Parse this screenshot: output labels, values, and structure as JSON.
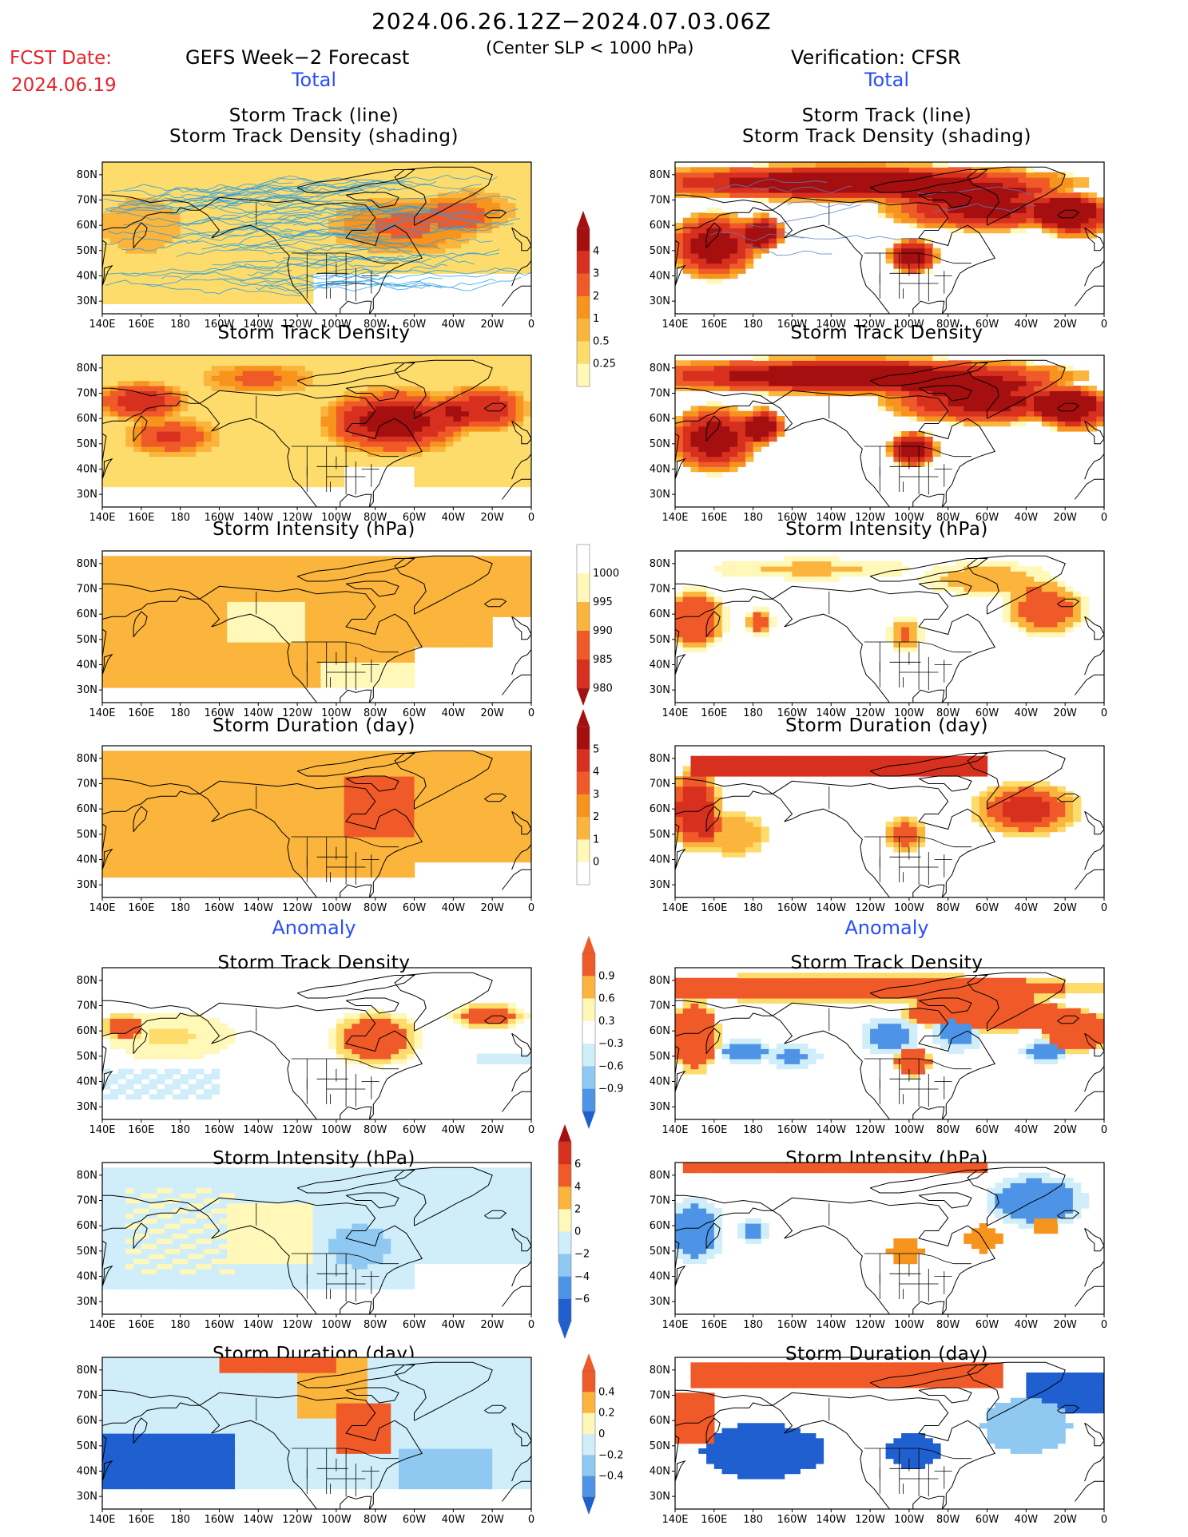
{
  "header": {
    "period": "2024.06.26.12Z−2024.07.03.06Z",
    "criterion": "(Center SLP < 1000 hPa)",
    "fcst_label": "FCST Date:",
    "fcst_value": "2024.06.19",
    "model": "GEFS Week−2 Forecast",
    "verification": "Verification: CFSR"
  },
  "sections": {
    "total_left": "Total",
    "total_right": "Total",
    "anomaly_left": "Anomaly",
    "anomaly_right": "Anomaly"
  },
  "panels": {
    "track_line_1": "Storm Track (line)",
    "track_line_2": "Storm Track Density (shading)",
    "density": "Storm Track Density",
    "intensity": "Storm Intensity (hPa)",
    "duration": "Storm Duration (day)"
  },
  "axes": {
    "lon_ticks": [
      "140E",
      "160E",
      "180",
      "160W",
      "140W",
      "120W",
      "100W",
      "80W",
      "60W",
      "40W",
      "20W",
      "0"
    ],
    "lat_ticks": [
      "80N",
      "70N",
      "60N",
      "50N",
      "40N",
      "30N"
    ]
  },
  "colorbars": {
    "density_total": [
      "4",
      "3",
      "2",
      "1",
      "0.5",
      "0.25"
    ],
    "intensity_total": [
      "1000",
      "995",
      "990",
      "985",
      "980"
    ],
    "duration_total": [
      "5",
      "4",
      "3",
      "2",
      "1",
      "0"
    ],
    "density_anom": [
      "0.9",
      "0.6",
      "0.3",
      "−0.3",
      "−0.6",
      "−0.9"
    ],
    "intensity_anom": [
      "6",
      "4",
      "2",
      "0",
      "−2",
      "−4",
      "−6"
    ],
    "duration_anom": [
      "0.4",
      "0.2",
      "0",
      "−0.2",
      "−0.4"
    ]
  },
  "colors": {
    "warm": [
      "#fff8b8",
      "#fddc6c",
      "#fbb43c",
      "#f7941d",
      "#f05a28",
      "#d7301f",
      "#a50f0f"
    ],
    "cool": [
      "#cfeefa",
      "#8fc8f0",
      "#4e94e6",
      "#1f5fd0"
    ],
    "track_fcst": "#2a9de0",
    "track_obs": "#5b7fc4",
    "title_red": "#e8222b",
    "section_blue": "#2a4dff"
  }
}
